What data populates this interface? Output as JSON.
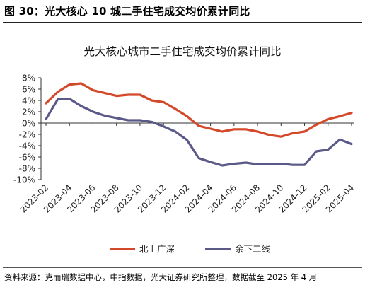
{
  "figure_label": "图 30：光大核心 10 城二手住宅成交均价累计同比",
  "source": "资料来源：克而瑞数据中心，中指数据，光大证券研究所整理，数据截至 2025 年 4 月",
  "chart_data": {
    "type": "line",
    "title": "光大核心城市二手住宅成交均价累计同比",
    "xlabel": "",
    "ylabel": "",
    "x": [
      "2023-02",
      "2023-03",
      "2023-04",
      "2023-05",
      "2023-06",
      "2023-07",
      "2023-08",
      "2023-09",
      "2023-10",
      "2023-11",
      "2023-12",
      "2024-01",
      "2024-02",
      "2024-03",
      "2024-04",
      "2024-05",
      "2024-06",
      "2024-07",
      "2024-08",
      "2024-09",
      "2024-10",
      "2024-11",
      "2024-12",
      "2025-01",
      "2025-02",
      "2025-03",
      "2025-04"
    ],
    "x_tick_labels": [
      "2023-02",
      "2023-04",
      "2023-06",
      "2023-08",
      "2023-10",
      "2023-12",
      "2024-02",
      "2024-04",
      "2024-06",
      "2024-08",
      "2024-10",
      "2024-12",
      "2025-02",
      "2025-04"
    ],
    "y_tick_values": [
      8,
      6,
      4,
      2,
      0,
      -2,
      -4,
      -6,
      -8,
      -10
    ],
    "y_tick_labels": [
      "8%",
      "6%",
      "4%",
      "2%",
      "0%",
      "-2%",
      "-4%",
      "-6%",
      "-8%",
      "-10%"
    ],
    "ylim": [
      -10,
      8
    ],
    "y_unit": "%",
    "grid": false,
    "legend_position": "bottom",
    "series": [
      {
        "name": "北上广深",
        "color": "#D4492A",
        "values": [
          3.5,
          5.5,
          6.8,
          7.0,
          5.8,
          5.3,
          4.8,
          5.0,
          5.0,
          4.0,
          3.7,
          2.5,
          1.2,
          -0.5,
          -1.0,
          -1.5,
          -1.1,
          -1.1,
          -1.5,
          -2.1,
          -2.4,
          -1.8,
          -1.5,
          -0.3,
          0.7,
          1.2,
          1.8
        ]
      },
      {
        "name": "余下二线",
        "color": "#5A5987",
        "values": [
          0.7,
          4.2,
          4.3,
          3.0,
          2.0,
          1.3,
          0.9,
          0.5,
          0.5,
          0.2,
          -0.6,
          -1.5,
          -3.0,
          -6.2,
          -6.9,
          -7.5,
          -7.2,
          -7.0,
          -7.3,
          -7.3,
          -7.2,
          -7.4,
          -7.4,
          -5.0,
          -4.7,
          -2.9,
          -3.7
        ]
      }
    ]
  }
}
